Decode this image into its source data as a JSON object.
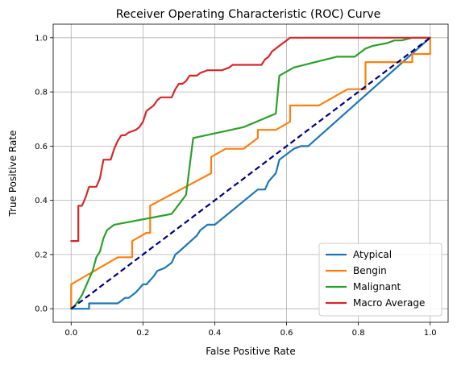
{
  "chart_data": {
    "type": "line",
    "title": "Receiver Operating Characteristic (ROC) Curve",
    "xlabel": "False Positive Rate",
    "ylabel": "True Positive Rate",
    "xlim": [
      -0.05,
      1.05
    ],
    "ylim": [
      -0.05,
      1.05
    ],
    "xticks": [
      "0.0",
      "0.2",
      "0.4",
      "0.6",
      "0.8",
      "1.0"
    ],
    "yticks": [
      "0.0",
      "0.2",
      "0.4",
      "0.6",
      "0.8",
      "1.0"
    ],
    "grid": true,
    "legend_position": "lower-right",
    "series": [
      {
        "name": "Atypical",
        "color": "#1f77b4",
        "x": [
          0.0,
          0.05,
          0.05,
          0.11,
          0.13,
          0.15,
          0.16,
          0.18,
          0.2,
          0.21,
          0.23,
          0.24,
          0.26,
          0.28,
          0.29,
          0.3,
          0.35,
          0.36,
          0.38,
          0.4,
          0.52,
          0.54,
          0.55,
          0.57,
          0.58,
          0.6,
          0.62,
          0.64,
          0.66,
          1.0
        ],
        "y": [
          0.0,
          0.0,
          0.02,
          0.02,
          0.02,
          0.04,
          0.04,
          0.06,
          0.09,
          0.09,
          0.12,
          0.14,
          0.15,
          0.17,
          0.2,
          0.21,
          0.27,
          0.29,
          0.31,
          0.31,
          0.44,
          0.44,
          0.47,
          0.5,
          0.55,
          0.57,
          0.59,
          0.6,
          0.6,
          1.0
        ]
      },
      {
        "name": "Bengin",
        "color": "#ff7f0e",
        "x": [
          0.0,
          0.0,
          0.13,
          0.17,
          0.17,
          0.21,
          0.22,
          0.22,
          0.39,
          0.39,
          0.43,
          0.48,
          0.52,
          0.52,
          0.57,
          0.61,
          0.61,
          0.69,
          0.77,
          0.82,
          0.82,
          0.95,
          0.95,
          1.0,
          1.0
        ],
        "y": [
          0.0,
          0.09,
          0.19,
          0.19,
          0.25,
          0.28,
          0.28,
          0.38,
          0.5,
          0.56,
          0.59,
          0.59,
          0.63,
          0.66,
          0.66,
          0.69,
          0.75,
          0.75,
          0.81,
          0.81,
          0.91,
          0.91,
          0.94,
          0.94,
          1.0
        ]
      },
      {
        "name": "Malignant",
        "color": "#2ca02c",
        "x": [
          0.0,
          0.01,
          0.02,
          0.03,
          0.04,
          0.05,
          0.06,
          0.07,
          0.08,
          0.09,
          0.1,
          0.11,
          0.12,
          0.28,
          0.32,
          0.34,
          0.48,
          0.57,
          0.58,
          0.62,
          0.68,
          0.74,
          0.79,
          0.82,
          0.84,
          0.88,
          0.9,
          0.92,
          0.95,
          1.0
        ],
        "y": [
          0.0,
          0.01,
          0.03,
          0.05,
          0.08,
          0.11,
          0.14,
          0.19,
          0.21,
          0.26,
          0.29,
          0.3,
          0.31,
          0.35,
          0.42,
          0.63,
          0.67,
          0.72,
          0.86,
          0.89,
          0.91,
          0.93,
          0.93,
          0.96,
          0.97,
          0.98,
          0.99,
          0.99,
          1.0,
          1.0
        ]
      },
      {
        "name": "Macro Average",
        "color": "#d62728",
        "x": [
          0.0,
          0.02,
          0.02,
          0.03,
          0.04,
          0.05,
          0.07,
          0.08,
          0.09,
          0.11,
          0.12,
          0.13,
          0.14,
          0.15,
          0.16,
          0.18,
          0.19,
          0.2,
          0.21,
          0.22,
          0.23,
          0.24,
          0.25,
          0.26,
          0.28,
          0.29,
          0.3,
          0.31,
          0.32,
          0.33,
          0.35,
          0.36,
          0.38,
          0.42,
          0.44,
          0.45,
          0.53,
          0.54,
          0.55,
          0.56,
          0.57,
          0.58,
          0.59,
          0.6,
          0.61,
          1.0
        ],
        "y": [
          0.25,
          0.25,
          0.38,
          0.38,
          0.41,
          0.45,
          0.45,
          0.48,
          0.55,
          0.55,
          0.59,
          0.62,
          0.64,
          0.64,
          0.65,
          0.66,
          0.67,
          0.69,
          0.73,
          0.74,
          0.75,
          0.77,
          0.78,
          0.78,
          0.78,
          0.81,
          0.83,
          0.83,
          0.84,
          0.86,
          0.86,
          0.87,
          0.88,
          0.88,
          0.89,
          0.9,
          0.9,
          0.92,
          0.93,
          0.95,
          0.96,
          0.97,
          0.98,
          0.99,
          1.0,
          1.0
        ]
      }
    ],
    "reference_line": {
      "x": [
        0.0,
        1.0
      ],
      "y": [
        0.0,
        1.0
      ],
      "color": "#000080",
      "style": "dashed"
    }
  }
}
